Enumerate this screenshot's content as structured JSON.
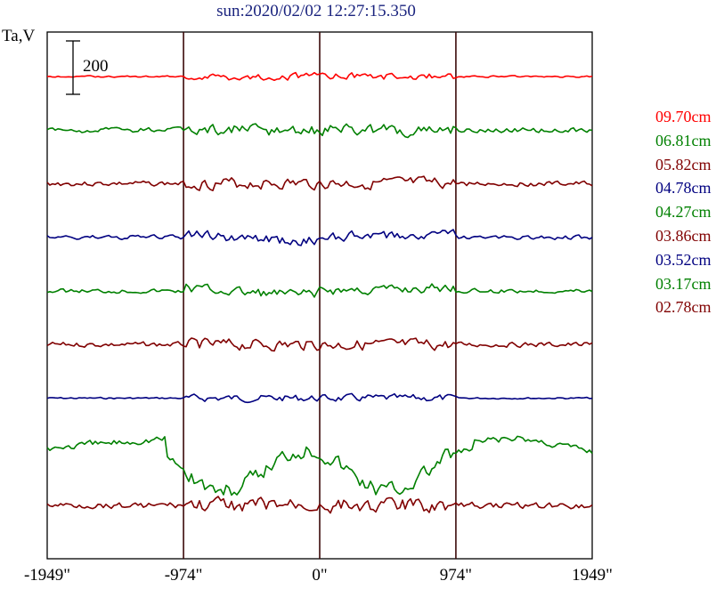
{
  "chart_data": {
    "type": "line",
    "title": "sun:2020/02/02 12:27:15.350",
    "ylabel": "Ta,V",
    "scale_bar_label": "200",
    "x_ticks": [
      "-1949\"",
      "-974\"",
      "0\"",
      "974\"",
      "1949\""
    ],
    "x_tick_values": [
      -1949,
      -974,
      0,
      974,
      1949
    ],
    "vertical_lines_at": [
      -974,
      0,
      974
    ],
    "series": [
      {
        "name": "09.70cm",
        "color": "#ff0000",
        "style": "calm",
        "seed": 1
      },
      {
        "name": "06.81cm",
        "color": "#008000",
        "style": "mod",
        "seed": 2
      },
      {
        "name": "05.82cm",
        "color": "#800000",
        "style": "mod",
        "seed": 3
      },
      {
        "name": "04.78cm",
        "color": "#000080",
        "style": "dip",
        "seed": 4
      },
      {
        "name": "04.27cm",
        "color": "#008000",
        "style": "dip",
        "seed": 5
      },
      {
        "name": "03.86cm",
        "color": "#800000",
        "style": "mod",
        "seed": 6
      },
      {
        "name": "03.52cm",
        "color": "#000080",
        "style": "calm",
        "seed": 7
      },
      {
        "name": "03.17cm",
        "color": "#008000",
        "style": "big",
        "seed": 8
      },
      {
        "name": "02.78cm",
        "color": "#800000",
        "style": "noisy",
        "seed": 9
      }
    ]
  }
}
